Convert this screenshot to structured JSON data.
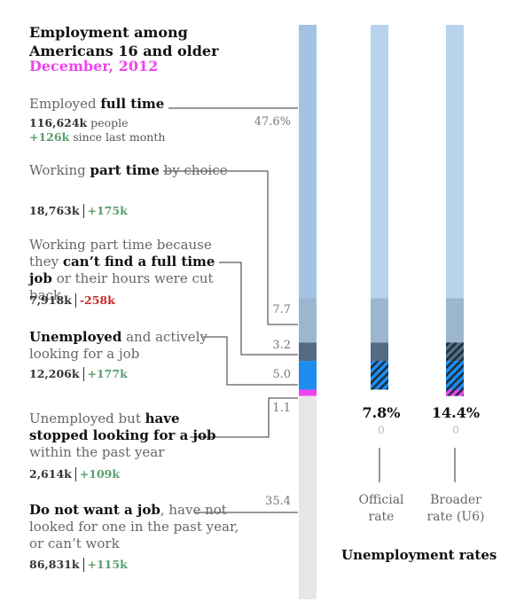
{
  "title": "Employment among Americans 16 and older",
  "subtitle": "December, 2012",
  "chart_data": {
    "type": "stacked-bar",
    "title": "Employment among Americans 16 and older",
    "subtitle": "December, 2012",
    "segments": [
      {
        "key": "full_time",
        "percent": 47.6,
        "percent_label": "47.6%",
        "color": "#a4c3e3"
      },
      {
        "key": "part_time_choice",
        "percent": 7.7,
        "percent_label": "7.7",
        "color": "#9db6cf"
      },
      {
        "key": "part_time_economic",
        "percent": 3.2,
        "percent_label": "3.2",
        "color": "#536c84"
      },
      {
        "key": "unemployed_active",
        "percent": 5.0,
        "percent_label": "5.0",
        "color": "#1f8cf0"
      },
      {
        "key": "stopped_looking",
        "percent": 1.1,
        "percent_label": "1.1",
        "color": "#ee44ee"
      },
      {
        "key": "not_want_job",
        "percent": 35.4,
        "percent_label": "35.4",
        "color": "#e6e6e6"
      }
    ],
    "rate_bars": [
      {
        "key": "official",
        "rate": 7.8,
        "rate_label": "7.8%",
        "zero_label": "0",
        "label_line1": "Official",
        "label_line2": "rate"
      },
      {
        "key": "broader",
        "rate": 14.4,
        "rate_label": "14.4%",
        "zero_label": "0",
        "label_line1": "Broader",
        "label_line2": "rate (U6)"
      }
    ],
    "rates_title": "Unemployment rates"
  },
  "categories": {
    "full_time": {
      "pre": "Employed ",
      "bold": "full time",
      "post": "",
      "num": "116,624k",
      "num_suffix": " people",
      "chg": "+126k",
      "chg_suffix": "  since last month"
    },
    "part_time_choice": {
      "pre": "Working ",
      "bold": "part time",
      "post": " by choice",
      "num": "18,763k",
      "chg": "+175k"
    },
    "part_time_economic": {
      "pre": "Working part time because they ",
      "bold": "can’t find a full time job",
      "post": " or their hours were cut back",
      "num": "7,918k",
      "chg": "-258k"
    },
    "unemployed_active": {
      "pre": "",
      "bold": "Unemployed",
      "post": " and actively looking for a job",
      "num": "12,206k",
      "chg": "+177k"
    },
    "stopped_looking": {
      "pre": "Unemployed but ",
      "bold": "have stopped looking for a job",
      "post": " within the past year",
      "num": "2,614k",
      "chg": "+109k"
    },
    "not_want_job": {
      "pre": "",
      "bold": "Do not want a job",
      "post": ", have not looked for one in the past year, or can’t work",
      "num": "86,831k",
      "chg": "+115k"
    }
  }
}
